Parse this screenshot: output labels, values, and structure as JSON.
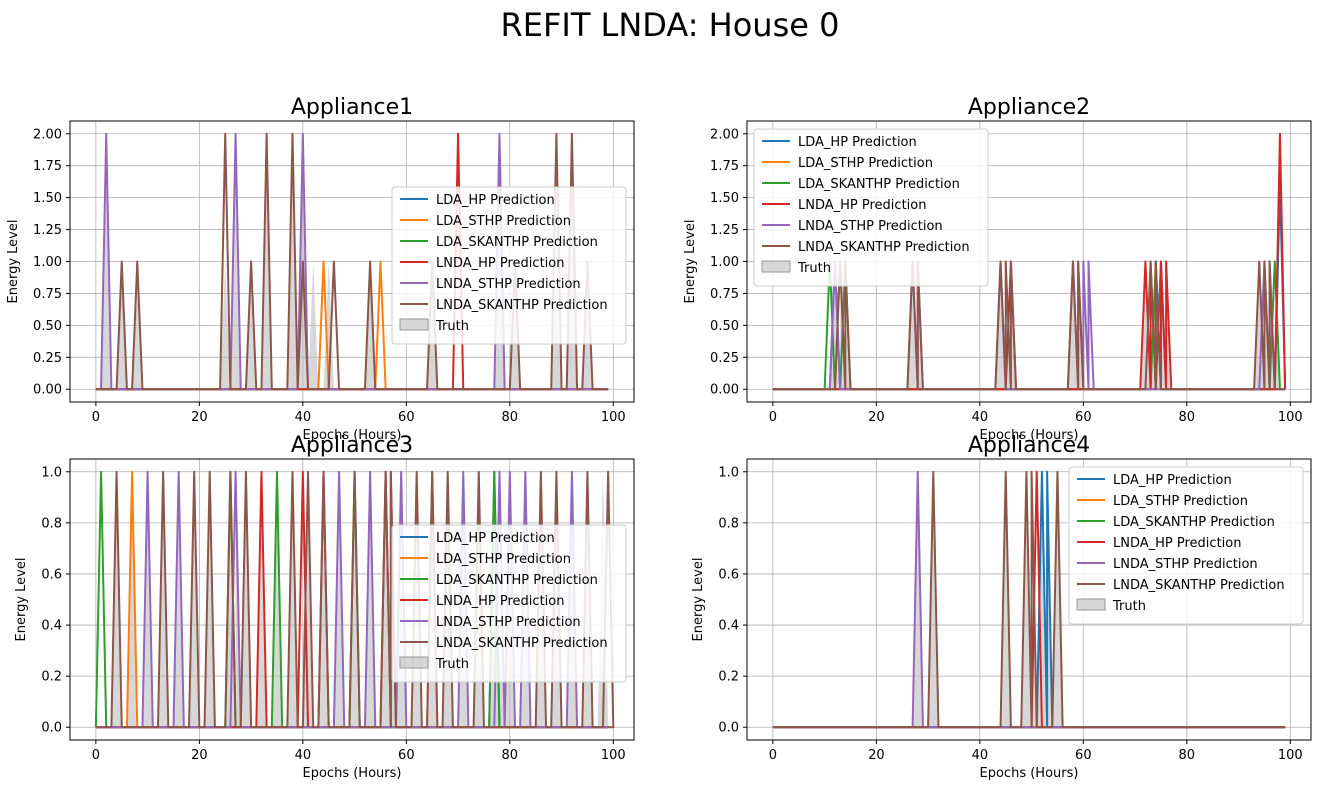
{
  "figure": {
    "title": "REFIT LNDA: House 0"
  },
  "style": {
    "series_colors": [
      "#1f77b4",
      "#ff7f0e",
      "#2ca02c",
      "#d62728",
      "#9467bd",
      "#8c564b"
    ],
    "truth_fill": "#bdbdbd",
    "grid_color": "#b0b0b0"
  },
  "chart_data": [
    {
      "type": "line",
      "title": "Appliance1",
      "xlabel": "Epochs (Hours)",
      "ylabel": "Energy Level",
      "xlim": [
        -5,
        104
      ],
      "ylim": [
        -0.1,
        2.1
      ],
      "xticks": [
        0,
        20,
        40,
        60,
        80,
        100
      ],
      "yticks": [
        0.0,
        0.25,
        0.5,
        0.75,
        1.0,
        1.25,
        1.5,
        1.75,
        2.0
      ],
      "ytick_decimals": 2,
      "grid": true,
      "legend_position": "center-right",
      "legend_labels": [
        "LDA_HP Prediction",
        "LDA_STHP Prediction",
        "LDA_SKANTHP Prediction",
        "LNDA_HP Prediction",
        "LNDA_STHP Prediction",
        "LNDA_SKANTHP Prediction",
        "Truth"
      ],
      "truth": [
        [
          2,
          2
        ],
        [
          5,
          1
        ],
        [
          8,
          1
        ],
        [
          25,
          1
        ],
        [
          27,
          2
        ],
        [
          30,
          1
        ],
        [
          33,
          2
        ],
        [
          38,
          2
        ],
        [
          40,
          2
        ],
        [
          42,
          1
        ],
        [
          45,
          1
        ],
        [
          53,
          1
        ],
        [
          65,
          1
        ],
        [
          78,
          2
        ],
        [
          81,
          1
        ],
        [
          89,
          1
        ],
        [
          92,
          2
        ],
        [
          95,
          1
        ]
      ],
      "series": [
        {
          "spikes": []
        },
        {
          "spikes": [
            [
              44,
              1
            ],
            [
              55,
              1
            ]
          ]
        },
        {
          "spikes": []
        },
        {
          "spikes": [
            [
              70,
              2
            ]
          ]
        },
        {
          "spikes": [
            [
              2,
              2
            ],
            [
              27,
              2
            ],
            [
              40,
              2
            ],
            [
              78,
              2
            ]
          ]
        },
        {
          "spikes": [
            [
              5,
              1
            ],
            [
              8,
              1
            ],
            [
              25,
              2
            ],
            [
              30,
              1
            ],
            [
              33,
              2
            ],
            [
              38,
              2
            ],
            [
              40,
              1
            ],
            [
              46,
              1
            ],
            [
              53,
              1
            ],
            [
              65,
              1
            ],
            [
              81,
              1
            ],
            [
              89,
              2
            ],
            [
              92,
              2
            ],
            [
              95,
              1
            ]
          ]
        }
      ]
    },
    {
      "type": "line",
      "title": "Appliance2",
      "xlabel": "Epochs (Hours)",
      "ylabel": "Energy Level",
      "xlim": [
        -5,
        104
      ],
      "ylim": [
        -0.1,
        2.1
      ],
      "xticks": [
        0,
        20,
        40,
        60,
        80,
        100
      ],
      "yticks": [
        0.0,
        0.25,
        0.5,
        0.75,
        1.0,
        1.25,
        1.5,
        1.75,
        2.0
      ],
      "ytick_decimals": 2,
      "grid": true,
      "legend_position": "upper-left",
      "legend_labels": [
        "LDA_HP Prediction",
        "LDA_STHP Prediction",
        "LDA_SKANTHP Prediction",
        "LNDA_HP Prediction",
        "LNDA_STHP Prediction",
        "LNDA_SKANTHP Prediction",
        "Truth"
      ],
      "truth": [
        [
          12,
          1
        ],
        [
          13,
          1
        ],
        [
          14,
          1
        ],
        [
          27,
          1
        ],
        [
          28,
          1
        ],
        [
          44,
          1
        ],
        [
          45,
          1
        ],
        [
          46,
          1
        ],
        [
          58,
          1
        ],
        [
          59,
          1
        ],
        [
          72,
          1
        ],
        [
          73,
          1
        ],
        [
          74,
          1
        ],
        [
          75,
          1
        ],
        [
          76,
          1
        ],
        [
          94,
          1
        ],
        [
          95,
          1
        ],
        [
          96,
          1
        ],
        [
          97,
          1
        ]
      ],
      "series": [
        {
          "spikes": [
            [
              12,
              1
            ],
            [
              75,
              1
            ],
            [
              98,
              1.6
            ]
          ]
        },
        {
          "spikes": [
            [
              13,
              1
            ]
          ]
        },
        {
          "spikes": [
            [
              11,
              1
            ],
            [
              14,
              1
            ],
            [
              74,
              1
            ],
            [
              97,
              1
            ]
          ]
        },
        {
          "spikes": [
            [
              46,
              1
            ],
            [
              72,
              1
            ],
            [
              73,
              1
            ],
            [
              74,
              1
            ],
            [
              75,
              1
            ],
            [
              76,
              1
            ],
            [
              98,
              2
            ]
          ]
        },
        {
          "spikes": [
            [
              12,
              1
            ],
            [
              27,
              1
            ],
            [
              28,
              1
            ],
            [
              44,
              1
            ],
            [
              58,
              1
            ],
            [
              59,
              1
            ],
            [
              60,
              1
            ],
            [
              61,
              1
            ],
            [
              95,
              1
            ],
            [
              96,
              1
            ]
          ]
        },
        {
          "spikes": [
            [
              13,
              1
            ],
            [
              14,
              1
            ],
            [
              27,
              1
            ],
            [
              28,
              1
            ],
            [
              44,
              1
            ],
            [
              45,
              1
            ],
            [
              46,
              1
            ],
            [
              58,
              1
            ],
            [
              59,
              1
            ],
            [
              73,
              1
            ],
            [
              74,
              1
            ],
            [
              94,
              1
            ],
            [
              95,
              1
            ],
            [
              96,
              1
            ]
          ]
        }
      ]
    },
    {
      "type": "line",
      "title": "Appliance3",
      "xlabel": "Epochs (Hours)",
      "ylabel": "Energy Level",
      "xlim": [
        -5,
        104
      ],
      "ylim": [
        -0.05,
        1.05
      ],
      "xticks": [
        0,
        20,
        40,
        60,
        80,
        100
      ],
      "yticks": [
        0.0,
        0.2,
        0.4,
        0.6,
        0.8,
        1.0
      ],
      "ytick_decimals": 1,
      "grid": true,
      "legend_position": "center-right",
      "legend_labels": [
        "LDA_HP Prediction",
        "LDA_STHP Prediction",
        "LDA_SKANTHP Prediction",
        "LNDA_HP Prediction",
        "LNDA_STHP Prediction",
        "LNDA_SKANTHP Prediction",
        "Truth"
      ],
      "truth": [
        [
          4,
          1
        ],
        [
          7,
          1
        ],
        [
          10,
          1
        ],
        [
          13,
          1
        ],
        [
          16,
          1
        ],
        [
          19,
          1
        ],
        [
          22,
          1
        ],
        [
          26,
          1
        ],
        [
          27,
          1
        ],
        [
          29,
          1
        ],
        [
          32,
          1
        ],
        [
          35,
          1
        ],
        [
          38,
          1
        ],
        [
          41,
          1
        ],
        [
          44,
          1
        ],
        [
          47,
          1
        ],
        [
          50,
          1
        ],
        [
          53,
          1
        ],
        [
          56,
          1
        ],
        [
          57,
          1
        ],
        [
          59,
          1
        ],
        [
          62,
          1
        ],
        [
          65,
          1
        ],
        [
          68,
          1
        ],
        [
          71,
          1
        ],
        [
          74,
          1
        ],
        [
          77,
          1
        ],
        [
          78,
          1
        ],
        [
          80,
          1
        ],
        [
          83,
          1
        ],
        [
          86,
          1
        ],
        [
          89,
          1
        ],
        [
          92,
          1
        ],
        [
          95,
          1
        ],
        [
          98,
          1
        ]
      ],
      "series": [
        {
          "spikes": [
            [
              77,
              1
            ]
          ]
        },
        {
          "spikes": [
            [
              7,
              1
            ],
            [
              65,
              1
            ]
          ]
        },
        {
          "spikes": [
            [
              1,
              1
            ],
            [
              26,
              1
            ],
            [
              35,
              1
            ],
            [
              50,
              1
            ],
            [
              77,
              1
            ]
          ]
        },
        {
          "spikes": [
            [
              32,
              1
            ],
            [
              40,
              1
            ],
            [
              44,
              1
            ],
            [
              56,
              1
            ],
            [
              57,
              1
            ]
          ]
        },
        {
          "spikes": [
            [
              10,
              1
            ],
            [
              16,
              1
            ],
            [
              27,
              1
            ],
            [
              47,
              1
            ],
            [
              53,
              1
            ],
            [
              59,
              1
            ],
            [
              71,
              1
            ],
            [
              78,
              1
            ],
            [
              80,
              1
            ],
            [
              83,
              1
            ],
            [
              92,
              1
            ]
          ]
        },
        {
          "spikes": [
            [
              4,
              1
            ],
            [
              13,
              1
            ],
            [
              19,
              1
            ],
            [
              22,
              1
            ],
            [
              26,
              1
            ],
            [
              29,
              1
            ],
            [
              38,
              1
            ],
            [
              41,
              1
            ],
            [
              44,
              1
            ],
            [
              50,
              1
            ],
            [
              56,
              1
            ],
            [
              57,
              1
            ],
            [
              62,
              1
            ],
            [
              65,
              1
            ],
            [
              68,
              1
            ],
            [
              74,
              1
            ],
            [
              86,
              1
            ],
            [
              89,
              1
            ],
            [
              95,
              1
            ],
            [
              99,
              1
            ]
          ]
        }
      ]
    },
    {
      "type": "line",
      "title": "Appliance4",
      "xlabel": "Epochs (Hours)",
      "ylabel": "Energy Level",
      "xlim": [
        -5,
        104
      ],
      "ylim": [
        -0.05,
        1.05
      ],
      "xticks": [
        0,
        20,
        40,
        60,
        80,
        100
      ],
      "yticks": [
        0.0,
        0.2,
        0.4,
        0.6,
        0.8,
        1.0
      ],
      "ytick_decimals": 1,
      "grid": true,
      "legend_position": "upper-right",
      "legend_labels": [
        "LDA_HP Prediction",
        "LDA_STHP Prediction",
        "LDA_SKANTHP Prediction",
        "LNDA_HP Prediction",
        "LNDA_STHP Prediction",
        "LNDA_SKANTHP Prediction",
        "Truth"
      ],
      "truth": [
        [
          28,
          1
        ],
        [
          31,
          1
        ],
        [
          45,
          1
        ],
        [
          49,
          1
        ],
        [
          50,
          1
        ],
        [
          52,
          1
        ],
        [
          53,
          1
        ],
        [
          55,
          1
        ]
      ],
      "series": [
        {
          "spikes": [
            [
              52,
              1
            ],
            [
              53,
              1
            ]
          ]
        },
        {
          "spikes": []
        },
        {
          "spikes": []
        },
        {
          "spikes": [
            [
              51,
              1
            ]
          ]
        },
        {
          "spikes": [
            [
              28,
              1
            ]
          ]
        },
        {
          "spikes": [
            [
              31,
              1
            ],
            [
              45,
              1
            ],
            [
              49,
              1
            ],
            [
              50,
              1
            ],
            [
              55,
              1
            ]
          ]
        }
      ]
    }
  ]
}
